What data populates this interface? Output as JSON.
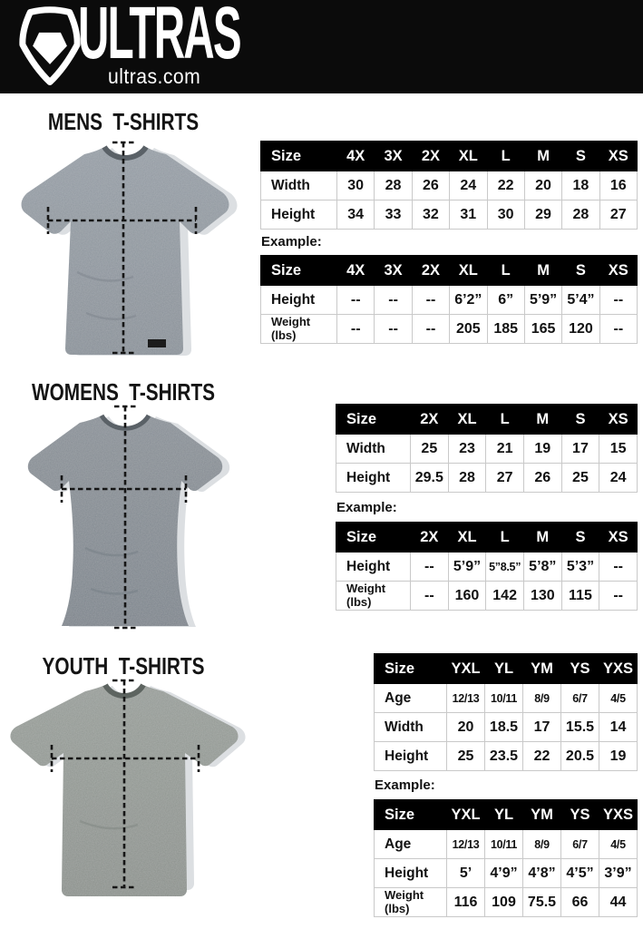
{
  "header": {
    "brand": "ULTRAS",
    "site": "ultras.com"
  },
  "colors": {
    "header_bg": "#0b0b0b",
    "table_header_bg": "#000000",
    "shirt_mens": "#8d959d",
    "shirt_womens": "#81888f",
    "shirt_youth": "#8e948f"
  },
  "sections": [
    {
      "title": "MENS T-SHIRTS",
      "example_label": "Example:",
      "size_table": {
        "columns": [
          "Size",
          "4X",
          "3X",
          "2X",
          "XL",
          "L",
          "M",
          "S",
          "XS"
        ],
        "rows": [
          {
            "label": "Width",
            "values": [
              "30",
              "28",
              "26",
              "24",
              "22",
              "20",
              "18",
              "16"
            ]
          },
          {
            "label": "Height",
            "values": [
              "34",
              "33",
              "32",
              "31",
              "30",
              "29",
              "28",
              "27"
            ]
          }
        ]
      },
      "example_table": {
        "columns": [
          "Size",
          "4X",
          "3X",
          "2X",
          "XL",
          "L",
          "M",
          "S",
          "XS"
        ],
        "rows": [
          {
            "label": "Height",
            "values": [
              "--",
              "--",
              "--",
              "6’2”",
              "6”",
              "5’9”",
              "5’4”",
              "--"
            ]
          },
          {
            "label": "Weight (lbs)",
            "values": [
              "--",
              "--",
              "--",
              "205",
              "185",
              "165",
              "120",
              "--"
            ]
          }
        ]
      }
    },
    {
      "title": "WOMENS T-SHIRTS",
      "example_label": "Example:",
      "size_table": {
        "columns": [
          "Size",
          "2X",
          "XL",
          "L",
          "M",
          "S",
          "XS"
        ],
        "rows": [
          {
            "label": "Width",
            "values": [
              "25",
              "23",
              "21",
              "19",
              "17",
              "15"
            ]
          },
          {
            "label": "Height",
            "values": [
              "29.5",
              "28",
              "27",
              "26",
              "25",
              "24"
            ]
          }
        ]
      },
      "example_table": {
        "columns": [
          "Size",
          "2X",
          "XL",
          "L",
          "M",
          "S",
          "XS"
        ],
        "rows": [
          {
            "label": "Height",
            "values": [
              "--",
              "5’9”",
              "5”8.5”",
              "5’8”",
              "5’3”",
              "--"
            ]
          },
          {
            "label": "Weight (lbs)",
            "values": [
              "--",
              "160",
              "142",
              "130",
              "115",
              "--"
            ]
          }
        ]
      }
    },
    {
      "title": "YOUTH T-SHIRTS",
      "example_label": "Example:",
      "size_table": {
        "columns": [
          "Size",
          "YXL",
          "YL",
          "YM",
          "YS",
          "YXS"
        ],
        "rows": [
          {
            "label": "Age",
            "values": [
              "12/13",
              "10/11",
              "8/9",
              "6/7",
              "4/5"
            ]
          },
          {
            "label": "Width",
            "values": [
              "20",
              "18.5",
              "17",
              "15.5",
              "14"
            ]
          },
          {
            "label": "Height",
            "values": [
              "25",
              "23.5",
              "22",
              "20.5",
              "19"
            ]
          }
        ]
      },
      "example_table": {
        "columns": [
          "Size",
          "YXL",
          "YL",
          "YM",
          "YS",
          "YXS"
        ],
        "rows": [
          {
            "label": "Age",
            "values": [
              "12/13",
              "10/11",
              "8/9",
              "6/7",
              "4/5"
            ]
          },
          {
            "label": "Height",
            "values": [
              "5’",
              "4’9”",
              "4’8”",
              "4’5”",
              "3’9”"
            ]
          },
          {
            "label": "Weight (lbs)",
            "values": [
              "116",
              "109",
              "75.5",
              "66",
              "44"
            ]
          }
        ]
      }
    }
  ]
}
